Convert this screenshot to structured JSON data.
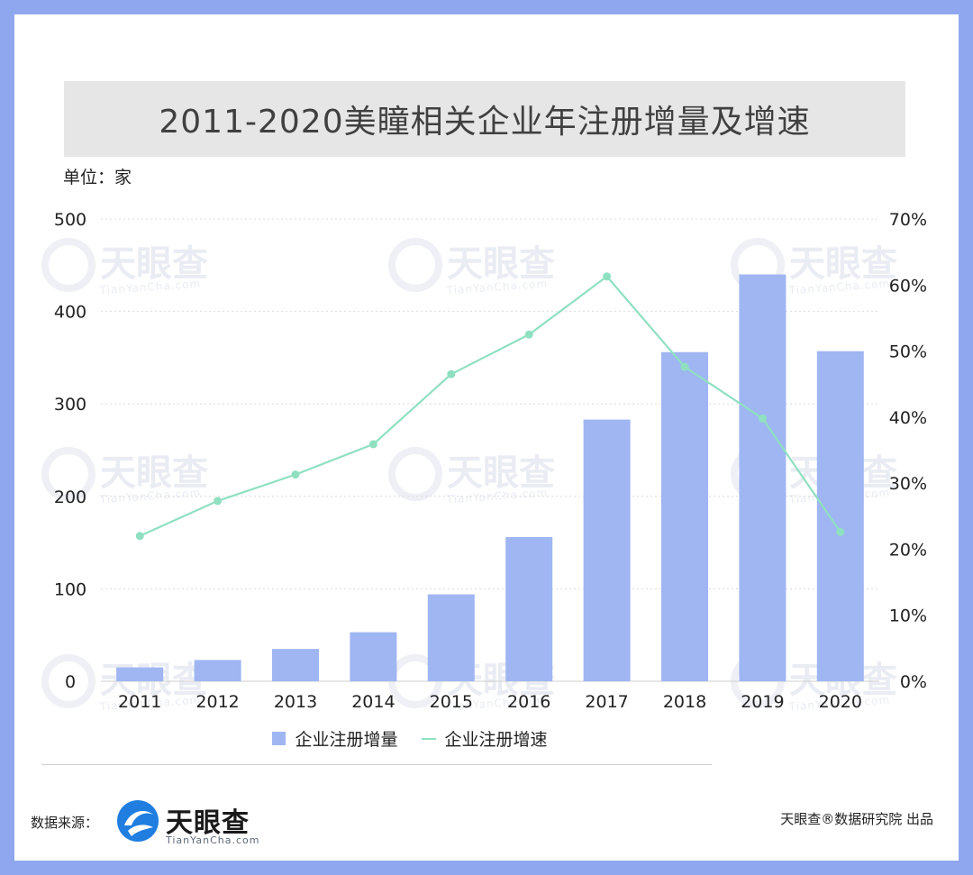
{
  "title": "2011-2020美瞳相关企业年注册增量及增速",
  "unit": "单位：家",
  "watermark": {
    "name": "天眼查",
    "site": "TianYanCha.com"
  },
  "chart_data": {
    "type": "bar",
    "categories": [
      "2011",
      "2012",
      "2013",
      "2014",
      "2015",
      "2016",
      "2017",
      "2018",
      "2019",
      "2020"
    ],
    "series": [
      {
        "name": "企业注册增量",
        "type": "bar",
        "axis": "left",
        "color": "#9fb6f2",
        "values": [
          15,
          23,
          35,
          53,
          94,
          156,
          283,
          356,
          440,
          357
        ]
      },
      {
        "name": "企业注册增速",
        "type": "line",
        "axis": "right",
        "color": "#8fe0c0",
        "values": [
          22,
          27.3,
          31.3,
          35.9,
          46.5,
          52.5,
          61.3,
          47.6,
          39.8,
          22.6
        ]
      }
    ],
    "y_left": {
      "min": 0,
      "max": 500,
      "ticks": [
        "0",
        "100",
        "200",
        "300",
        "400",
        "500"
      ]
    },
    "y_right": {
      "min": 0,
      "max": 70,
      "ticks": [
        "0%",
        "10%",
        "20%",
        "30%",
        "40%",
        "50%",
        "60%",
        "70%"
      ]
    },
    "grid": true
  },
  "legend": {
    "bar_label": "企业注册增量",
    "line_label": "企业注册增速"
  },
  "footer": {
    "source_label": "数据来源：",
    "logo_name": "天眼查",
    "logo_site": "TianYanCha.com",
    "credit": "天眼查®数据研究院 出品"
  },
  "colors": {
    "frame": "#8fa7ee",
    "bar": "#9fb6f2",
    "line": "#8fe0c0"
  }
}
